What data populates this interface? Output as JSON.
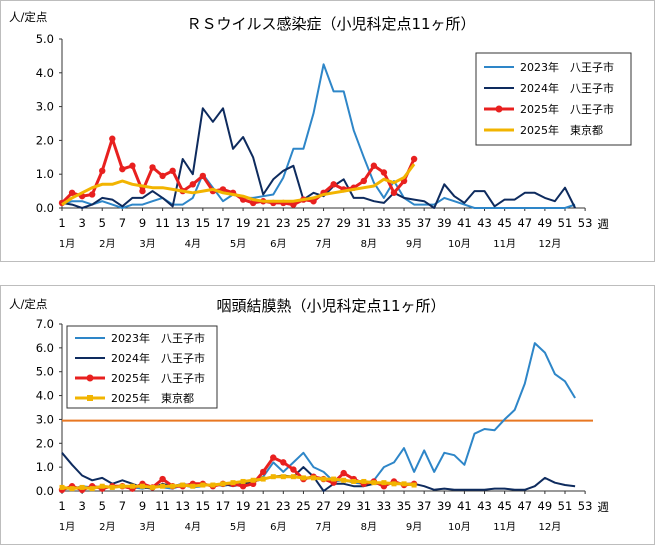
{
  "charts": [
    {
      "type": "line",
      "title": "ＲＳウイルス感染症（小児科定点11ヶ所）",
      "ylabel": "人/定点",
      "xlabel": "週",
      "ylim": [
        0,
        5
      ],
      "yticks": [
        "0.0",
        "1.0",
        "2.0",
        "3.0",
        "4.0",
        "5.0"
      ],
      "xticks": [
        1,
        3,
        5,
        7,
        9,
        11,
        13,
        15,
        17,
        19,
        21,
        23,
        25,
        27,
        29,
        31,
        33,
        35,
        37,
        39,
        41,
        43,
        45,
        47,
        49,
        51,
        53
      ],
      "months": [
        "1月",
        "2月",
        "3月",
        "4月",
        "5月",
        "6月",
        "7月",
        "8月",
        "9月",
        "10月",
        "11月",
        "12月"
      ],
      "month_weeks": [
        1.5,
        5.5,
        9.5,
        14,
        18.5,
        22.5,
        27,
        31.5,
        36,
        40.5,
        45,
        49.5
      ],
      "legend_position": "top-right",
      "hline": null,
      "series": [
        {
          "name": "2023年　八王子市",
          "color": "#2E86C8",
          "width": 2,
          "marker": "none",
          "values": [
            0.1,
            0.2,
            0.2,
            0.1,
            0.2,
            0.1,
            0.0,
            0.1,
            0.1,
            0.2,
            0.3,
            0.1,
            0.1,
            0.3,
            1.0,
            0.6,
            0.2,
            0.4,
            0.3,
            0.3,
            0.35,
            0.4,
            0.9,
            1.75,
            1.75,
            2.8,
            4.25,
            3.45,
            3.45,
            2.3,
            1.5,
            0.75,
            0.3,
            0.8,
            0.3,
            0.1,
            0.1,
            0.1,
            0.3,
            0.2,
            0.1,
            0.0,
            0.0,
            0.0,
            0.0,
            0.0,
            0.0,
            0.0,
            0.0,
            0.0,
            0.0,
            0.1
          ]
        },
        {
          "name": "2024年　八王子市",
          "color": "#0E2B5E",
          "width": 2,
          "marker": "none",
          "values": [
            0.15,
            0.1,
            0.0,
            0.1,
            0.3,
            0.25,
            0.05,
            0.3,
            0.3,
            0.5,
            0.3,
            0.05,
            1.45,
            1.0,
            2.95,
            2.55,
            2.95,
            1.75,
            2.1,
            1.5,
            0.4,
            0.85,
            1.1,
            1.25,
            0.25,
            0.45,
            0.35,
            0.65,
            0.85,
            0.3,
            0.3,
            0.2,
            0.15,
            0.45,
            0.3,
            0.25,
            0.2,
            0.0,
            0.7,
            0.35,
            0.15,
            0.5,
            0.5,
            0.05,
            0.25,
            0.25,
            0.45,
            0.45,
            0.3,
            0.2,
            0.6,
            0.0
          ]
        },
        {
          "name": "2025年　八王子市",
          "color": "#E8201F",
          "width": 3,
          "marker": "circle",
          "values": [
            0.15,
            0.45,
            0.35,
            0.4,
            1.1,
            2.05,
            1.15,
            1.25,
            0.5,
            1.2,
            0.95,
            1.1,
            0.5,
            0.7,
            0.95,
            0.5,
            0.55,
            0.45,
            0.25,
            0.15,
            0.2,
            0.15,
            0.15,
            0.1,
            0.25,
            0.2,
            0.45,
            0.7,
            0.55,
            0.6,
            0.8,
            1.25,
            1.05,
            0.45,
            0.8,
            1.45
          ]
        },
        {
          "name": "2025年　東京都",
          "color": "#F2B400",
          "width": 3,
          "marker": "none",
          "values": [
            0.1,
            0.3,
            0.45,
            0.6,
            0.7,
            0.7,
            0.8,
            0.7,
            0.65,
            0.6,
            0.6,
            0.55,
            0.5,
            0.45,
            0.5,
            0.55,
            0.45,
            0.4,
            0.35,
            0.25,
            0.2,
            0.2,
            0.2,
            0.2,
            0.25,
            0.3,
            0.4,
            0.45,
            0.5,
            0.55,
            0.6,
            0.65,
            0.85,
            0.75,
            0.9,
            1.3
          ]
        }
      ]
    },
    {
      "type": "line",
      "title": "咽頭結膜熱（小児科定点11ヶ所）",
      "ylabel": "人/定点",
      "xlabel": "週",
      "ylim": [
        0,
        7
      ],
      "yticks": [
        "0.0",
        "1.0",
        "2.0",
        "3.0",
        "4.0",
        "5.0",
        "6.0",
        "7.0"
      ],
      "xticks": [
        1,
        3,
        5,
        7,
        9,
        11,
        13,
        15,
        17,
        19,
        21,
        23,
        25,
        27,
        29,
        31,
        33,
        35,
        37,
        39,
        41,
        43,
        45,
        47,
        49,
        51,
        53
      ],
      "months": [
        "1月",
        "2月",
        "3月",
        "4月",
        "5月",
        "6月",
        "7月",
        "8月",
        "9月",
        "10月",
        "11月",
        "12月"
      ],
      "month_weeks": [
        1.5,
        5.5,
        9.5,
        14,
        18.5,
        22.5,
        27,
        31.5,
        36,
        40.5,
        45,
        49.5
      ],
      "legend_position": "top-left",
      "hline": {
        "value": 2.95,
        "color": "#E87722"
      },
      "series": [
        {
          "name": "2023年　八王子市",
          "color": "#2E86C8",
          "width": 2,
          "marker": "none",
          "values": [
            0.1,
            0.1,
            0.2,
            0.15,
            0.2,
            0.15,
            0.2,
            0.15,
            0.1,
            0.2,
            0.15,
            0.1,
            0.25,
            0.15,
            0.2,
            0.3,
            0.2,
            0.3,
            0.35,
            0.45,
            0.6,
            1.2,
            0.8,
            1.2,
            1.6,
            1.0,
            0.8,
            0.4,
            0.45,
            0.35,
            0.3,
            0.45,
            1.0,
            1.2,
            1.8,
            0.8,
            1.7,
            0.8,
            1.6,
            1.5,
            1.1,
            2.4,
            2.6,
            2.55,
            3.0,
            3.4,
            4.5,
            6.2,
            5.8,
            4.9,
            4.6,
            3.9
          ]
        },
        {
          "name": "2024年　八王子市",
          "color": "#0E2B5E",
          "width": 2,
          "marker": "none",
          "values": [
            1.6,
            1.1,
            0.65,
            0.45,
            0.55,
            0.3,
            0.45,
            0.3,
            0.15,
            0.1,
            0.3,
            0.2,
            0.3,
            0.2,
            0.3,
            0.2,
            0.3,
            0.2,
            0.3,
            0.4,
            0.5,
            0.6,
            0.65,
            0.6,
            1.0,
            0.6,
            0.0,
            0.3,
            0.3,
            0.2,
            0.2,
            0.3,
            0.3,
            0.3,
            0.3,
            0.3,
            0.2,
            0.05,
            0.1,
            0.05,
            0.05,
            0.05,
            0.05,
            0.1,
            0.1,
            0.05,
            0.05,
            0.2,
            0.55,
            0.35,
            0.25,
            0.2
          ]
        },
        {
          "name": "2025年　八王子市",
          "color": "#E8201F",
          "width": 3,
          "marker": "circle",
          "values": [
            0.05,
            0.2,
            0.05,
            0.2,
            0.1,
            0.2,
            0.2,
            0.1,
            0.3,
            0.15,
            0.5,
            0.2,
            0.2,
            0.3,
            0.3,
            0.2,
            0.3,
            0.3,
            0.2,
            0.3,
            0.8,
            1.4,
            1.2,
            0.9,
            0.5,
            0.6,
            0.5,
            0.35,
            0.75,
            0.5,
            0.3,
            0.4,
            0.2,
            0.4,
            0.25,
            0.3
          ]
        },
        {
          "name": "2025年　東京都",
          "color": "#F2B400",
          "width": 3,
          "marker": "square",
          "values": [
            0.15,
            0.1,
            0.15,
            0.1,
            0.2,
            0.15,
            0.2,
            0.2,
            0.2,
            0.15,
            0.2,
            0.2,
            0.25,
            0.2,
            0.25,
            0.25,
            0.3,
            0.35,
            0.4,
            0.45,
            0.5,
            0.6,
            0.6,
            0.6,
            0.55,
            0.55,
            0.5,
            0.5,
            0.45,
            0.4,
            0.4,
            0.35,
            0.35,
            0.3,
            0.3,
            0.25
          ]
        }
      ]
    }
  ]
}
